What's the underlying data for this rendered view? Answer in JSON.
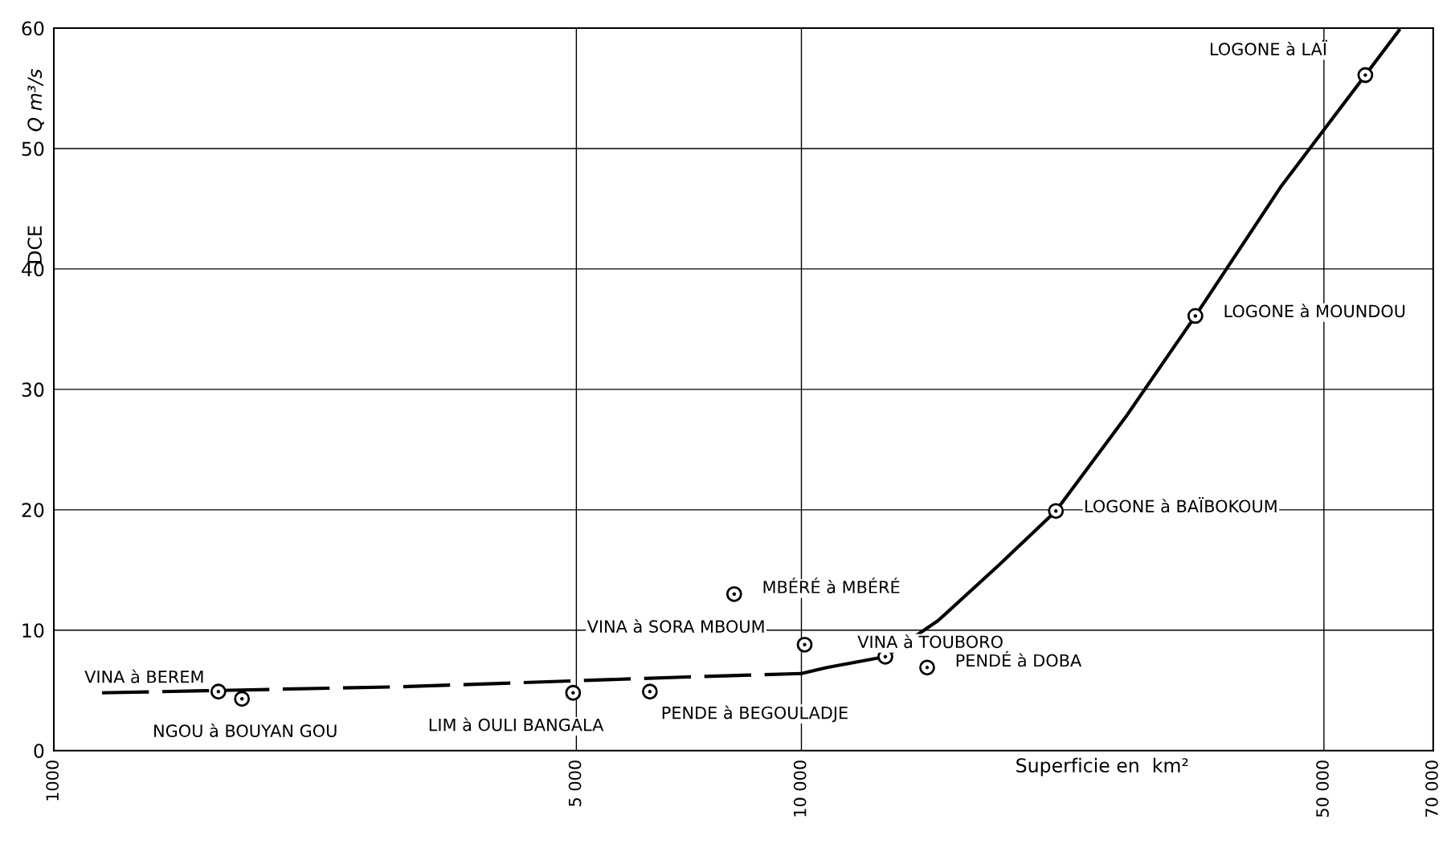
{
  "chart_data": {
    "type": "scatter",
    "xlabel": "Superficie en  km²",
    "ylabel": "Q m³/s",
    "log": "x",
    "xlim": [
      1000,
      70000
    ],
    "ylim": [
      0,
      60
    ],
    "xticks": [
      1000,
      {
        "value": 5000,
        "label": "5 000"
      },
      {
        "value": 10000,
        "label": "10 000"
      },
      {
        "value": 50000,
        "label": "50 000"
      },
      {
        "value": 70000,
        "label": "70 000"
      }
    ],
    "yticks": [
      0,
      10,
      20,
      30,
      40,
      50,
      60
    ],
    "grid": true,
    "legend": false,
    "series": [
      {
        "type": "line",
        "line_style": "dashed",
        "color": "#000000",
        "x": [
          1160,
          2900,
          6930,
          10000
        ],
        "values": [
          4.8,
          5.3,
          6.1,
          6.4
        ]
      },
      {
        "type": "line",
        "line_style": "solid",
        "color": "#000000",
        "x": [
          10000,
          10820,
          12950,
          15240,
          18370,
          21900,
          27150,
          33650,
          43870,
          56800,
          63000
        ],
        "values": [
          6.4,
          6.9,
          7.8,
          10.8,
          15.4,
          19.9,
          27.7,
          36.1,
          46.9,
          56.1,
          59.8
        ]
      },
      {
        "marker": "circle",
        "color": "#000000",
        "x": [
          1660,
          1785,
          4950,
          6270,
          8130,
          10100,
          12950,
          14730,
          21900,
          33650,
          56800
        ],
        "values": [
          4.9,
          4.3,
          4.8,
          4.9,
          13.0,
          8.8,
          7.8,
          6.9,
          19.9,
          36.1,
          56.1
        ]
      }
    ],
    "annotations": [
      "DCE",
      {
        "text": "VINA à BEREM",
        "x": 1660,
        "y": 4.9
      },
      {
        "text": "NGOU à BOUYAN GOU",
        "x": 1785,
        "y": 4.3
      },
      {
        "text": "LIM à OULI BANGALA",
        "x": 4950,
        "y": 4.8
      },
      {
        "text": "PENDE à BEGOULADJE",
        "x": 6270,
        "y": 4.9
      },
      {
        "text": "MBÉRÉ à MBÉRÉ",
        "x": 8130,
        "y": 13.0
      },
      {
        "text": "VINA à SORA MBOUM",
        "x": 10100,
        "y": 8.8
      },
      {
        "text": "VINA à TOUBORO",
        "x": 12950,
        "y": 7.8
      },
      {
        "text": "PENDÉ à DOBA",
        "x": 14730,
        "y": 6.9
      },
      {
        "text": "LOGONE à BAÏBOKOUM",
        "x": 21900,
        "y": 19.9
      },
      {
        "text": "LOGONE à MOUNDOU",
        "x": 33650,
        "y": 36.1
      },
      {
        "text": "LOGONE à LAÏ",
        "x": 56800,
        "y": 56.1
      }
    ]
  }
}
